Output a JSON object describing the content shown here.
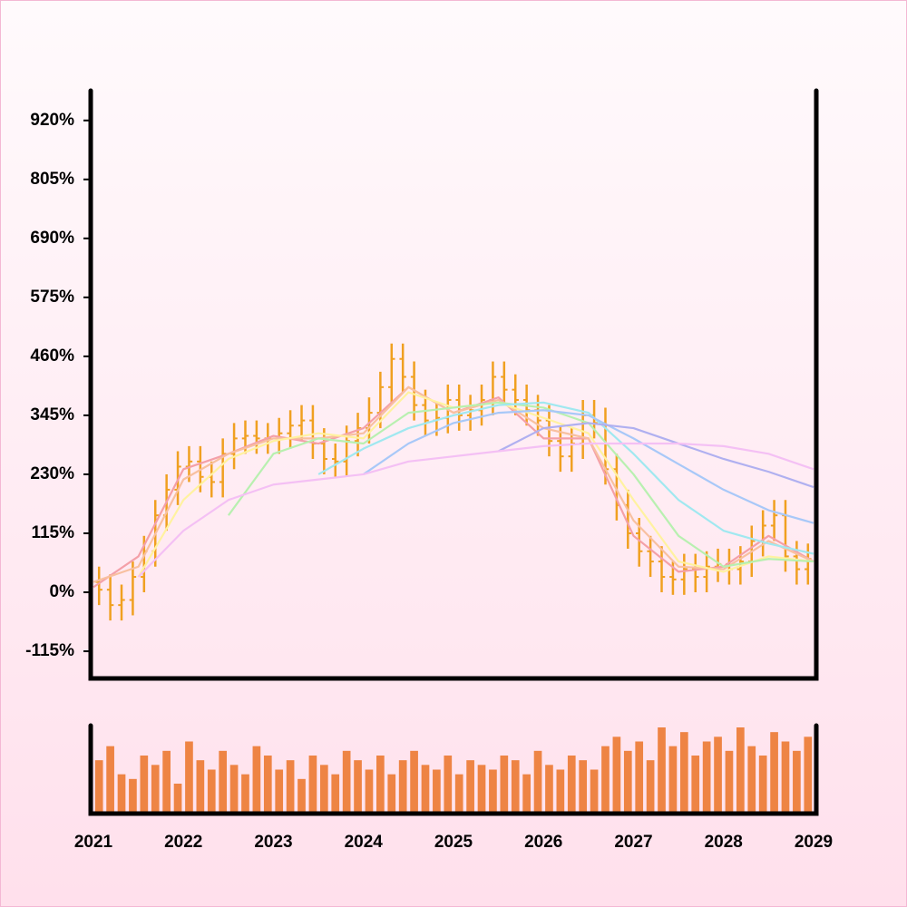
{
  "chart_data": {
    "type": "ohlc",
    "xlim": [
      2021,
      2029
    ],
    "xticks": [
      2021,
      2022,
      2023,
      2024,
      2025,
      2026,
      2027,
      2028,
      2029
    ],
    "ylim": [
      -168,
      978
    ],
    "yticks": [
      {
        "value": -115,
        "label": "-115%"
      },
      {
        "value": 0,
        "label": "0%"
      },
      {
        "value": 115,
        "label": "115%"
      },
      {
        "value": 230,
        "label": "230%"
      },
      {
        "value": 345,
        "label": "345%"
      },
      {
        "value": 460,
        "label": "460%"
      },
      {
        "value": 575,
        "label": "575%"
      },
      {
        "value": 690,
        "label": "690%"
      },
      {
        "value": 805,
        "label": "805%"
      },
      {
        "value": 920,
        "label": "920%"
      }
    ],
    "bar_color": "#f0a020",
    "volume_color": "#ee8444",
    "x": [
      2021.0625,
      2021.1875,
      2021.3125,
      2021.4375,
      2021.5625,
      2021.6875,
      2021.8125,
      2021.9375,
      2022.0625,
      2022.1875,
      2022.3125,
      2022.4375,
      2022.5625,
      2022.6875,
      2022.8125,
      2022.9375,
      2023.0625,
      2023.1875,
      2023.3125,
      2023.4375,
      2023.5625,
      2023.6875,
      2023.8125,
      2023.9375,
      2024.0625,
      2024.1875,
      2024.3125,
      2024.4375,
      2024.5625,
      2024.6875,
      2024.8125,
      2024.9375,
      2025.0625,
      2025.1875,
      2025.3125,
      2025.4375,
      2025.5625,
      2025.6875,
      2025.8125,
      2025.9375,
      2026.0625,
      2026.1875,
      2026.3125,
      2026.4375,
      2026.5625,
      2026.6875,
      2026.8125,
      2026.9375,
      2027.0625,
      2027.1875,
      2027.3125,
      2027.4375,
      2027.5625,
      2027.6875,
      2027.8125,
      2027.9375,
      2028.0625,
      2028.1875,
      2028.3125,
      2028.4375,
      2028.5625,
      2028.6875,
      2028.8125,
      2028.9375
    ],
    "open": [
      20,
      5,
      -25,
      -15,
      30,
      80,
      150,
      200,
      245,
      255,
      225,
      215,
      270,
      300,
      305,
      300,
      300,
      310,
      325,
      335,
      290,
      260,
      255,
      295,
      320,
      350,
      400,
      455,
      420,
      365,
      335,
      340,
      375,
      345,
      355,
      375,
      420,
      395,
      375,
      355,
      335,
      295,
      265,
      290,
      345,
      330,
      240,
      170,
      115,
      80,
      60,
      30,
      25,
      45,
      30,
      50,
      55,
      45,
      60,
      100,
      130,
      150,
      70,
      45
    ],
    "high": [
      50,
      35,
      15,
      60,
      110,
      180,
      230,
      275,
      285,
      285,
      255,
      300,
      330,
      335,
      335,
      330,
      340,
      355,
      365,
      365,
      320,
      290,
      325,
      350,
      380,
      430,
      485,
      485,
      450,
      395,
      370,
      405,
      405,
      385,
      405,
      450,
      450,
      425,
      405,
      385,
      365,
      325,
      320,
      375,
      375,
      360,
      270,
      200,
      145,
      110,
      90,
      60,
      75,
      75,
      80,
      85,
      85,
      90,
      130,
      160,
      180,
      180,
      100,
      95
    ],
    "low": [
      -25,
      -55,
      -55,
      -45,
      0,
      50,
      120,
      170,
      215,
      195,
      185,
      185,
      240,
      270,
      270,
      270,
      270,
      280,
      295,
      260,
      230,
      225,
      225,
      265,
      290,
      320,
      370,
      390,
      335,
      305,
      305,
      310,
      315,
      315,
      325,
      345,
      365,
      345,
      325,
      305,
      265,
      235,
      235,
      260,
      300,
      210,
      140,
      85,
      50,
      30,
      0,
      -5,
      -5,
      0,
      0,
      20,
      15,
      15,
      30,
      70,
      100,
      40,
      15,
      15
    ],
    "close": [
      5,
      -25,
      -15,
      30,
      80,
      150,
      200,
      245,
      255,
      225,
      215,
      270,
      300,
      305,
      300,
      300,
      310,
      325,
      335,
      290,
      260,
      255,
      295,
      320,
      350,
      400,
      455,
      420,
      365,
      335,
      340,
      375,
      345,
      355,
      375,
      420,
      395,
      375,
      355,
      335,
      295,
      265,
      290,
      345,
      330,
      240,
      170,
      115,
      80,
      60,
      30,
      25,
      45,
      30,
      50,
      55,
      45,
      60,
      100,
      130,
      150,
      70,
      45,
      65
    ],
    "volume": [
      55,
      70,
      40,
      35,
      60,
      50,
      65,
      30,
      75,
      55,
      45,
      65,
      50,
      40,
      70,
      60,
      45,
      55,
      35,
      60,
      50,
      40,
      65,
      55,
      45,
      60,
      40,
      55,
      65,
      50,
      45,
      60,
      40,
      55,
      50,
      45,
      60,
      55,
      40,
      65,
      50,
      45,
      60,
      55,
      45,
      70,
      80,
      65,
      75,
      55,
      90,
      70,
      85,
      60,
      75,
      80,
      65,
      90,
      70,
      60,
      85,
      75,
      65,
      80
    ],
    "ma_x": [
      2021,
      2021.5,
      2022,
      2022.5,
      2023,
      2023.5,
      2024,
      2024.5,
      2025,
      2025.5,
      2026,
      2026.5,
      2027,
      2027.5,
      2028,
      2028.5,
      2029
    ],
    "ma": [
      {
        "color": "#f4a0a8",
        "values": [
          10,
          70,
          240,
          270,
          305,
          290,
          320,
          400,
          350,
          380,
          300,
          300,
          110,
          40,
          50,
          110,
          60
        ]
      },
      {
        "color": "#f8c0a0",
        "values": [
          20,
          50,
          220,
          270,
          300,
          300,
          310,
          400,
          350,
          375,
          320,
          300,
          140,
          50,
          45,
          100,
          60
        ]
      },
      {
        "color": "#fff2a0",
        "values": [
          null,
          30,
          180,
          260,
          295,
          310,
          300,
          390,
          360,
          370,
          340,
          310,
          180,
          60,
          40,
          70,
          60
        ]
      },
      {
        "color": "#b8f0b0",
        "values": [
          null,
          null,
          null,
          150,
          270,
          300,
          290,
          350,
          360,
          370,
          360,
          330,
          230,
          110,
          50,
          65,
          60
        ]
      },
      {
        "color": "#a0e8f0",
        "values": [
          null,
          null,
          null,
          null,
          null,
          230,
          280,
          320,
          345,
          365,
          370,
          350,
          270,
          180,
          120,
          95,
          75
        ]
      },
      {
        "color": "#a8c8f8",
        "values": [
          null,
          null,
          null,
          null,
          null,
          null,
          230,
          290,
          330,
          350,
          355,
          345,
          300,
          250,
          200,
          160,
          135
        ]
      },
      {
        "color": "#b0b0f0",
        "values": [
          null,
          null,
          null,
          null,
          null,
          null,
          null,
          null,
          null,
          275,
          320,
          330,
          320,
          290,
          260,
          235,
          205
        ]
      },
      {
        "color": "#f4c0f4",
        "values": [
          null,
          30,
          120,
          180,
          210,
          220,
          230,
          255,
          265,
          275,
          285,
          290,
          290,
          290,
          285,
          270,
          240
        ]
      }
    ]
  }
}
